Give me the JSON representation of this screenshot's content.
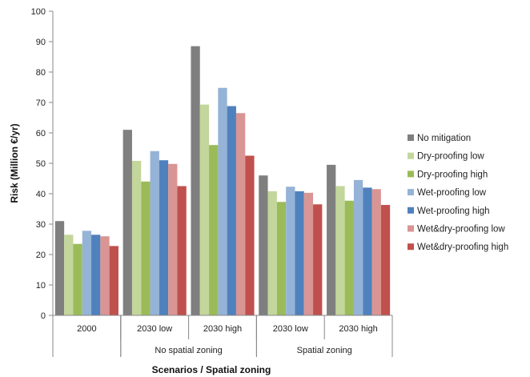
{
  "chart_data": {
    "type": "bar",
    "title": "",
    "xlabel": "Scenarios / Spatial zoning",
    "ylabel": "Risk (Million €/yr)",
    "ylim": [
      0,
      100
    ],
    "ytick_step": 10,
    "grid": false,
    "legend_position": "right",
    "categories": [
      "2000",
      "2030 low",
      "2030 high",
      "2030 low",
      "2030 high"
    ],
    "category_groups": [
      {
        "label": "",
        "start": 0,
        "end": 0
      },
      {
        "label": "No spatial zoning",
        "start": 1,
        "end": 2
      },
      {
        "label": "Spatial zoning",
        "start": 3,
        "end": 4
      }
    ],
    "series": [
      {
        "name": "No mitigation",
        "color": "#7f7f7f",
        "values": [
          31.0,
          61.0,
          88.5,
          46.0,
          49.5
        ]
      },
      {
        "name": "Dry-proofing low",
        "color": "#c3d69b",
        "values": [
          26.5,
          50.8,
          69.3,
          40.8,
          42.5
        ]
      },
      {
        "name": "Dry-proofing high",
        "color": "#9bbb59",
        "values": [
          23.5,
          44.0,
          56.0,
          37.3,
          37.7
        ]
      },
      {
        "name": "Wet-proofing low",
        "color": "#95b3d7",
        "values": [
          27.8,
          54.0,
          74.8,
          42.3,
          44.5
        ]
      },
      {
        "name": "Wet-proofing high",
        "color": "#4f81bd",
        "values": [
          26.5,
          51.0,
          68.8,
          40.8,
          42.0
        ]
      },
      {
        "name": "Wet&dry-proofing low",
        "color": "#d99594",
        "values": [
          26.0,
          49.8,
          66.5,
          40.3,
          41.5
        ]
      },
      {
        "name": "Wet&dry-proofing high",
        "color": "#c0504d",
        "values": [
          22.8,
          42.5,
          52.5,
          36.5,
          36.3
        ]
      }
    ]
  }
}
